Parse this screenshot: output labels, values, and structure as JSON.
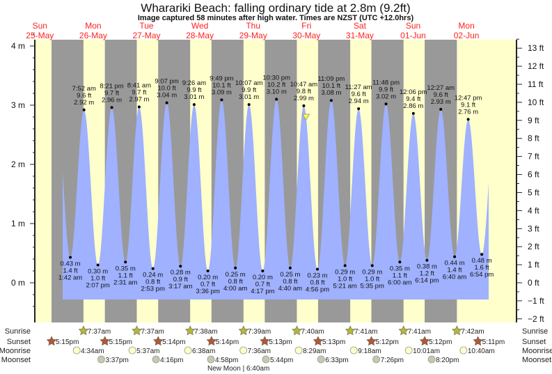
{
  "chart_data": {
    "type": "area",
    "title": "Wharariki Beach: falling  ordinary tide at 2.8m (9.2ft)",
    "subtitle": "Image captured 58 minutes after high water. Times are NZST (UTC +12.0hrs)",
    "days": [
      {
        "weekday": "Sun",
        "date": "25-May"
      },
      {
        "weekday": "Mon",
        "date": "26-May"
      },
      {
        "weekday": "Tue",
        "date": "27-May"
      },
      {
        "weekday": "Wed",
        "date": "28-May"
      },
      {
        "weekday": "Thu",
        "date": "29-May"
      },
      {
        "weekday": "Fri",
        "date": "30-May"
      },
      {
        "weekday": "Sat",
        "date": "31-May"
      },
      {
        "weekday": "Sun",
        "date": "01-Jun"
      },
      {
        "weekday": "Mon",
        "date": "02-Jun"
      }
    ],
    "y_left": {
      "unit": "m",
      "ticks": [
        "0 m",
        "1 m",
        "2 m",
        "3 m",
        "4 m"
      ],
      "ylim": [
        -0.55,
        4.25
      ]
    },
    "y_right": {
      "unit": "ft",
      "ticks": [
        "−2 ft",
        "−1 ft",
        "0 ft",
        "1 ft",
        "2 ft",
        "3 ft",
        "4 ft",
        "5 ft",
        "6 ft",
        "7 ft",
        "8 ft",
        "9 ft",
        "10 ft",
        "11 ft",
        "12 ft",
        "13 ft"
      ]
    },
    "extremes": [
      {
        "type": "low",
        "date": "26-May",
        "time": "1:42 am",
        "m": "0.43 m",
        "ft": "1.4 ft",
        "value": 0.43
      },
      {
        "type": "high",
        "date": "26-May",
        "time": "7:52 am",
        "m": "2.92 m",
        "ft": "9.6 ft",
        "value": 2.92
      },
      {
        "type": "low",
        "date": "26-May",
        "time": "2:07 pm",
        "m": "0.30 m",
        "ft": "1.0 ft",
        "value": 0.3
      },
      {
        "type": "high",
        "date": "26-May",
        "time": "8:21 pm",
        "m": "2.96 m",
        "ft": "9.7 ft",
        "value": 2.96
      },
      {
        "type": "low",
        "date": "27-May",
        "time": "2:31 am",
        "m": "0.35 m",
        "ft": "1.1 ft",
        "value": 0.35
      },
      {
        "type": "high",
        "date": "27-May",
        "time": "8:41 am",
        "m": "2.97 m",
        "ft": "9.7 ft",
        "value": 2.97
      },
      {
        "type": "low",
        "date": "27-May",
        "time": "2:53 pm",
        "m": "0.24 m",
        "ft": "0.8 ft",
        "value": 0.24
      },
      {
        "type": "high",
        "date": "27-May",
        "time": "9:07 pm",
        "m": "3.04 m",
        "ft": "10.0 ft",
        "value": 3.04
      },
      {
        "type": "low",
        "date": "28-May",
        "time": "3:17 am",
        "m": "0.28 m",
        "ft": "0.9 ft",
        "value": 0.28
      },
      {
        "type": "high",
        "date": "28-May",
        "time": "9:26 am",
        "m": "3.01 m",
        "ft": "9.9 ft",
        "value": 3.01
      },
      {
        "type": "low",
        "date": "28-May",
        "time": "3:36 pm",
        "m": "0.20 m",
        "ft": "0.7 ft",
        "value": 0.2
      },
      {
        "type": "high",
        "date": "28-May",
        "time": "9:49 pm",
        "m": "3.09 m",
        "ft": "10.1 ft",
        "value": 3.09
      },
      {
        "type": "low",
        "date": "29-May",
        "time": "4:00 am",
        "m": "0.25 m",
        "ft": "0.8 ft",
        "value": 0.25
      },
      {
        "type": "high",
        "date": "29-May",
        "time": "10:07 am",
        "m": "3.01 m",
        "ft": "9.9 ft",
        "value": 3.01
      },
      {
        "type": "low",
        "date": "29-May",
        "time": "4:17 pm",
        "m": "0.20 m",
        "ft": "0.7 ft",
        "value": 0.2
      },
      {
        "type": "high",
        "date": "29-May",
        "time": "10:30 pm",
        "m": "3.10 m",
        "ft": "10.2 ft",
        "value": 3.1
      },
      {
        "type": "low",
        "date": "30-May",
        "time": "4:40 am",
        "m": "0.25 m",
        "ft": "0.8 ft",
        "value": 0.25
      },
      {
        "type": "high",
        "date": "30-May",
        "time": "10:47 am",
        "m": "2.99 m",
        "ft": "9.8 ft",
        "value": 2.99
      },
      {
        "type": "low",
        "date": "30-May",
        "time": "4:56 pm",
        "m": "0.23 m",
        "ft": "0.8 ft",
        "value": 0.23
      },
      {
        "type": "high",
        "date": "30-May",
        "time": "11:09 pm",
        "m": "3.08 m",
        "ft": "10.1 ft",
        "value": 3.08
      },
      {
        "type": "low",
        "date": "31-May",
        "time": "5:21 am",
        "m": "0.29 m",
        "ft": "1.0 ft",
        "value": 0.29
      },
      {
        "type": "high",
        "date": "31-May",
        "time": "11:27 am",
        "m": "2.94 m",
        "ft": "9.6 ft",
        "value": 2.94
      },
      {
        "type": "low",
        "date": "31-May",
        "time": "5:35 pm",
        "m": "0.29 m",
        "ft": "1.0 ft",
        "value": 0.29
      },
      {
        "type": "high",
        "date": "31-May",
        "time": "11:48 pm",
        "m": "3.02 m",
        "ft": "9.9 ft",
        "value": 3.02
      },
      {
        "type": "low",
        "date": "01-Jun",
        "time": "6:00 am",
        "m": "0.35 m",
        "ft": "1.1 ft",
        "value": 0.35
      },
      {
        "type": "high",
        "date": "01-Jun",
        "time": "12:06 pm",
        "m": "2.86 m",
        "ft": "9.4 ft",
        "value": 2.86
      },
      {
        "type": "low",
        "date": "01-Jun",
        "time": "6:14 pm",
        "m": "0.38 m",
        "ft": "1.2 ft",
        "value": 0.38
      },
      {
        "type": "high",
        "date": "02-Jun",
        "time": "12:27 am",
        "m": "2.93 m",
        "ft": "9.6 ft",
        "value": 2.93
      },
      {
        "type": "low",
        "date": "02-Jun",
        "time": "6:40 am",
        "m": "0.44 m",
        "ft": "1.4 ft",
        "value": 0.44
      },
      {
        "type": "high",
        "date": "02-Jun",
        "time": "12:47 pm",
        "m": "2.76 m",
        "ft": "9.1 ft",
        "value": 2.76
      },
      {
        "type": "low",
        "date": "02-Jun",
        "time": "6:54 pm",
        "m": "0.48 m",
        "ft": "1.6 ft",
        "value": 0.48
      }
    ],
    "current": {
      "date": "30-May",
      "time": "11:45 am",
      "value": 2.8
    },
    "rows": {
      "sunrise": {
        "label": "Sunrise",
        "color": "#b5b53a",
        "events": [
          {
            "date": "26-May",
            "time": "7:37am"
          },
          {
            "date": "27-May",
            "time": "7:37am"
          },
          {
            "date": "28-May",
            "time": "7:38am"
          },
          {
            "date": "29-May",
            "time": "7:39am"
          },
          {
            "date": "30-May",
            "time": "7:40am"
          },
          {
            "date": "31-May",
            "time": "7:41am"
          },
          {
            "date": "01-Jun",
            "time": "7:41am"
          },
          {
            "date": "02-Jun",
            "time": "7:42am"
          }
        ]
      },
      "sunset": {
        "label": "Sunset",
        "color": "#b0583c",
        "events": [
          {
            "date": "25-May",
            "time": "5:15pm"
          },
          {
            "date": "26-May",
            "time": "5:15pm"
          },
          {
            "date": "27-May",
            "time": "5:14pm"
          },
          {
            "date": "28-May",
            "time": "5:14pm"
          },
          {
            "date": "29-May",
            "time": "5:13pm"
          },
          {
            "date": "30-May",
            "time": "5:13pm"
          },
          {
            "date": "31-May",
            "time": "5:12pm"
          },
          {
            "date": "01-Jun",
            "time": "5:12pm"
          },
          {
            "date": "02-Jun",
            "time": "5:11pm"
          }
        ]
      },
      "moonrise": {
        "label": "Moonrise",
        "color": "#ffffc8",
        "events": [
          {
            "date": "26-May",
            "time": "4:34am"
          },
          {
            "date": "27-May",
            "time": "5:37am"
          },
          {
            "date": "28-May",
            "time": "6:38am"
          },
          {
            "date": "29-May",
            "time": "7:36am"
          },
          {
            "date": "30-May",
            "time": "8:29am"
          },
          {
            "date": "31-May",
            "time": "9:18am"
          },
          {
            "date": "01-Jun",
            "time": "10:01am"
          },
          {
            "date": "02-Jun",
            "time": "10:40am"
          }
        ]
      },
      "moonset": {
        "label": "Moonset",
        "color": "#c8c8b0",
        "events": [
          {
            "date": "26-May",
            "time": "3:37pm"
          },
          {
            "date": "27-May",
            "time": "4:16pm"
          },
          {
            "date": "28-May",
            "time": "4:58pm"
          },
          {
            "date": "29-May",
            "time": "5:44pm"
          },
          {
            "date": "30-May",
            "time": "6:33pm"
          },
          {
            "date": "31-May",
            "time": "7:26pm"
          },
          {
            "date": "01-Jun",
            "time": "8:20pm"
          }
        ]
      }
    },
    "moon_phase": "New Moon | 6:40am",
    "colors": {
      "water": "#9fb1ff",
      "night": "#999999",
      "day": "#ffffcc",
      "day_label": "#ff2020",
      "marker": "#ffff44"
    }
  }
}
